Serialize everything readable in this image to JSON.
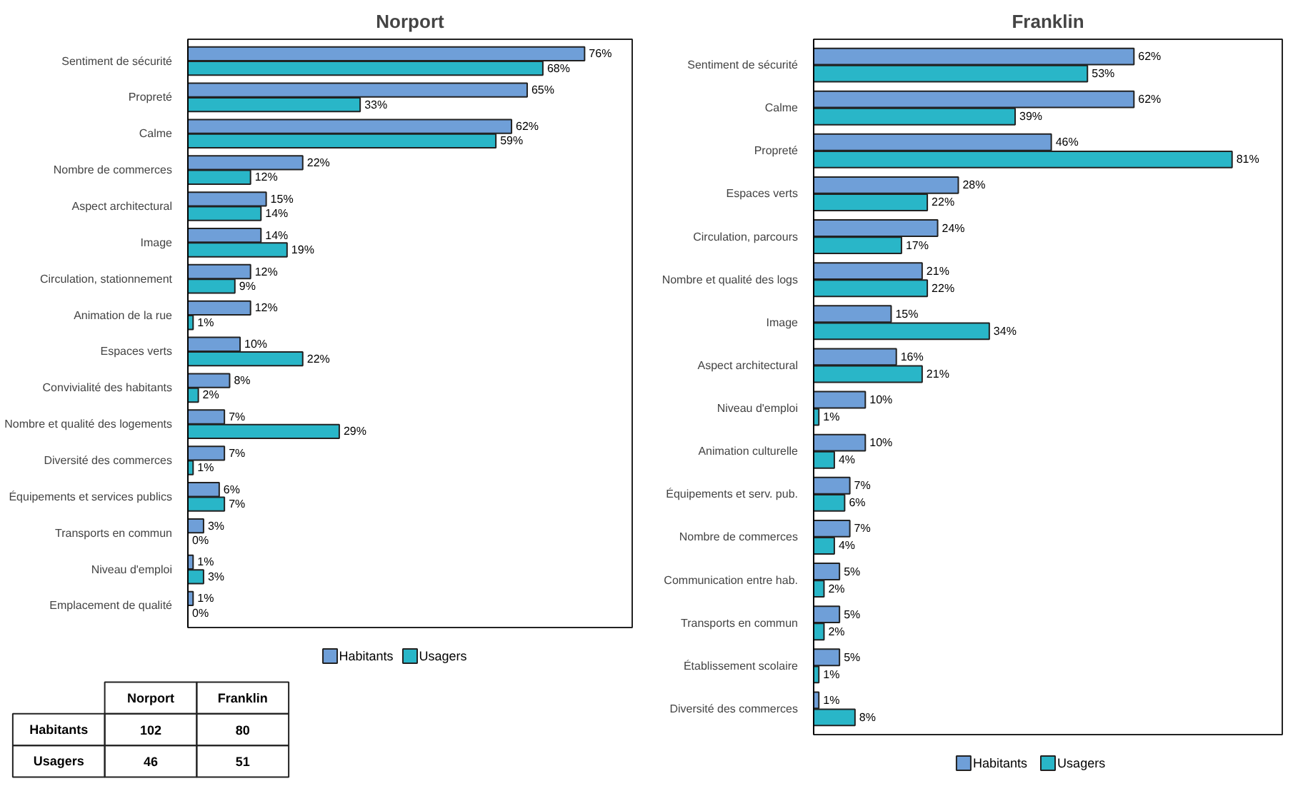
{
  "chart_data": [
    {
      "type": "bar",
      "orientation": "horizontal",
      "title": "Norport",
      "legend": "bottom",
      "tick_labels": "y",
      "categories": [
        "Sentiment de sécurité",
        "Propreté",
        "Calme",
        "Nombre de commerces",
        "Aspect architectural",
        "Image",
        "Circulation, stationnement",
        "Animation de la rue",
        "Espaces verts",
        "Convivialité des habitants",
        "Nombre et qualité des logements",
        "Diversité des commerces",
        "Équipements et services publics",
        "Transports en commun",
        "Niveau d'emploi",
        "Emplacement de qualité"
      ],
      "series": [
        {
          "name": "Habitants",
          "color": "#6f9fd8",
          "values": [
            76,
            65,
            62,
            22,
            15,
            14,
            12,
            12,
            10,
            8,
            7,
            7,
            6,
            3,
            1,
            1
          ],
          "value_labels": [
            "76%",
            "65%",
            "62%",
            "22%",
            "15%",
            "14%",
            "12%",
            "12%",
            "10%",
            "8%",
            "7%",
            "7%",
            "6%",
            "3%",
            "1%",
            "1%"
          ]
        },
        {
          "name": "Usagers",
          "color": "#29b6c8",
          "values": [
            68,
            33,
            59,
            12,
            14,
            19,
            9,
            1,
            22,
            2,
            29,
            1,
            7,
            0,
            3,
            0
          ],
          "value_labels": [
            "68%",
            "33%",
            "59%",
            "12%",
            "14%",
            "19%",
            "9%",
            "1%",
            "22%",
            "2%",
            "29%",
            "1%",
            "7%",
            "0%",
            "3%",
            "0%"
          ]
        }
      ]
    },
    {
      "type": "bar",
      "orientation": "horizontal",
      "title": "Franklin",
      "legend": "bottom",
      "tick_labels": "y",
      "categories": [
        "Sentiment de sécurité",
        "Calme",
        "Propreté",
        "Espaces verts",
        "Circulation, parcours",
        "Nombre et qualité des logs",
        "Image",
        "Aspect architectural",
        "Niveau d'emploi",
        "Animation culturelle",
        "Équipements et serv. pub.",
        "Nombre de commerces",
        "Communication entre hab.",
        "Transports en commun",
        "Établissement scolaire",
        "Diversité des commerces"
      ],
      "series": [
        {
          "name": "Habitants",
          "color": "#6f9fd8",
          "values": [
            62,
            62,
            46,
            28,
            24,
            21,
            15,
            16,
            10,
            10,
            7,
            7,
            5,
            5,
            5,
            1
          ],
          "value_labels": [
            "62%",
            "62%",
            "46%",
            "28%",
            "24%",
            "21%",
            "15%",
            "16%",
            "10%",
            "10%",
            "7%",
            "7%",
            "5%",
            "5%",
            "5%",
            "1%"
          ]
        },
        {
          "name": "Usagers",
          "color": "#29b6c8",
          "values": [
            53,
            39,
            81,
            22,
            17,
            22,
            34,
            21,
            1,
            4,
            6,
            4,
            2,
            2,
            1,
            8
          ],
          "value_labels": [
            "53%",
            "39%",
            "81%",
            "22%",
            "17%",
            "22%",
            "34%",
            "21%",
            "1%",
            "4%",
            "6%",
            "4%",
            "2%",
            "2%",
            "1%",
            "8%"
          ]
        }
      ]
    },
    {
      "type": "heatmap",
      "data_labels": true,
      "categories": [
        "Norport",
        "Franklin"
      ],
      "y_categories": [
        "Habitants",
        "Usagers"
      ],
      "cells": [
        [
          102,
          80
        ],
        [
          46,
          51
        ]
      ]
    }
  ]
}
